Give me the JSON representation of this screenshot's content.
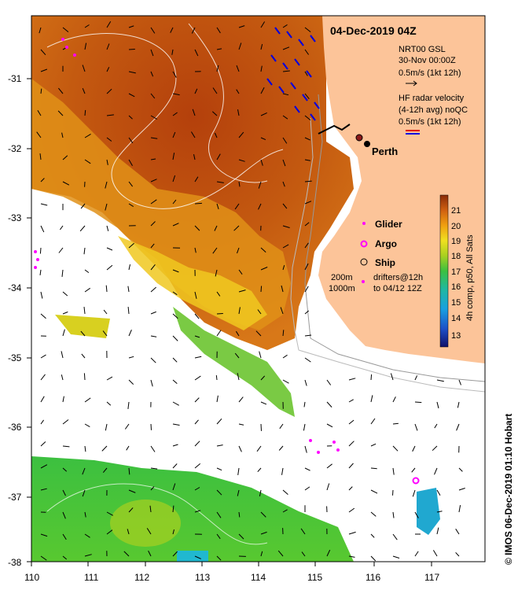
{
  "map": {
    "title": "04-Dec-2019 04Z",
    "lon_ticks": [
      "110",
      "111",
      "112",
      "113",
      "114",
      "115",
      "116",
      "117"
    ],
    "lat_ticks": [
      "-31",
      "-32",
      "-33",
      "-34",
      "-35",
      "-36",
      "-37",
      "-38"
    ],
    "gsl": {
      "line1": "NRT00 GSL",
      "line2": "30-Nov 00:00Z",
      "line3": "0.5m/s (1kt 12h)"
    },
    "hf": {
      "line1": "HF radar velocity",
      "line2": "(4-12h avg) noQC",
      "line3": "0.5m/s (1kt 12h)"
    },
    "city": "Perth",
    "legend": {
      "glider": "Glider",
      "argo": "Argo",
      "ship": "Ship"
    },
    "depth": {
      "d1": "200m",
      "d2": "1000m"
    },
    "drifters": {
      "line1": "drifters@12h",
      "line2": "to 04/12 12Z"
    },
    "colorbar": {
      "ticks": [
        "21",
        "20",
        "19",
        "18",
        "17",
        "16",
        "15",
        "14",
        "13"
      ],
      "label": "4h comp, p50, All Sats"
    },
    "credit": "© IMOS 06-Dec-2019 01:10 Hobart",
    "colors": {
      "land": "#fcc499",
      "glider": "#ff00ff",
      "hf_red": "#e00000",
      "hf_blue": "#0000e0"
    }
  }
}
